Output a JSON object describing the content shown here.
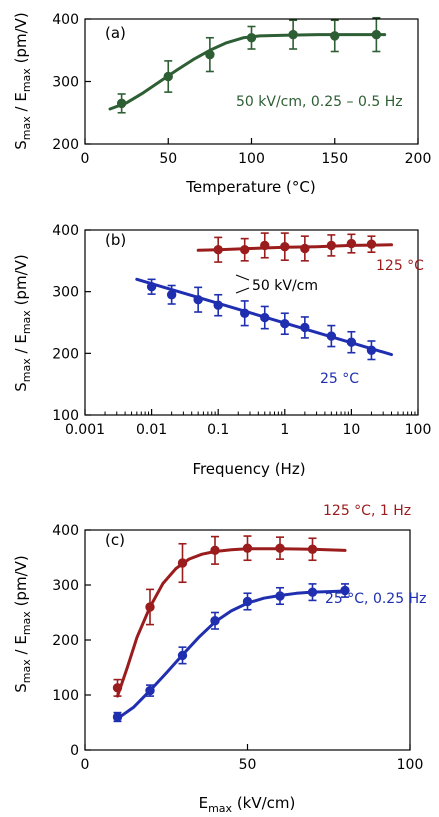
{
  "chart_data": [
    {
      "type": "line",
      "panel": "(a)",
      "xlabel": "Temperature (°C)",
      "ylabel": {
        "main": "S",
        "sub1": "max",
        "mid": " / E",
        "sub2": "max",
        "tail": " (pm/V)"
      },
      "xlim": [
        0,
        200
      ],
      "ylim": [
        200,
        400
      ],
      "xticks": [
        0,
        50,
        100,
        150,
        200
      ],
      "yticks": [
        200,
        300,
        400
      ],
      "xscale": "linear",
      "series": [
        {
          "color": "#2e5e34",
          "x": [
            22,
            50,
            75,
            100,
            125,
            150,
            175
          ],
          "y": [
            265,
            308,
            343,
            370,
            375,
            373,
            375
          ],
          "err": [
            15,
            25,
            27,
            18,
            23,
            25,
            27
          ],
          "fit": {
            "x": [
              15,
              25,
              35,
              45,
              55,
              65,
              75,
              85,
              95,
              105,
              120,
              140,
              160,
              180
            ],
            "y": [
              256,
              266,
              282,
              300,
              318,
              335,
              350,
              362,
              370,
              373,
              374,
              375,
              375,
              375
            ]
          }
        }
      ],
      "annotations": [
        {
          "text": "50 kV/cm, 0.25 – 0.5 Hz",
          "color": "#2e5e34"
        }
      ]
    },
    {
      "type": "line",
      "panel": "(b)",
      "xlabel": "Frequency (Hz)",
      "ylabel": {
        "main": "S",
        "sub1": "max",
        "mid": " / E",
        "sub2": "max",
        "tail": " (pm/V)"
      },
      "xlim": [
        0.001,
        100
      ],
      "ylim": [
        100,
        400
      ],
      "xticks": [
        0.001,
        0.01,
        0.1,
        1,
        10,
        100
      ],
      "xticklabels": [
        "0.001",
        "0.01",
        "0.1",
        "1",
        "10",
        "100"
      ],
      "yticks": [
        100,
        200,
        300,
        400
      ],
      "xscale": "log",
      "series": [
        {
          "name": "125 °C",
          "color": "#9b1c1c",
          "x": [
            0.1,
            0.25,
            0.5,
            1,
            2,
            5,
            10,
            20
          ],
          "y": [
            368,
            368,
            375,
            373,
            370,
            375,
            378,
            377
          ],
          "err": [
            20,
            18,
            20,
            22,
            20,
            17,
            15,
            13
          ],
          "fit": {
            "x": [
              0.05,
              0.1,
              0.3,
              1,
              3,
              10,
              40
            ],
            "y": [
              367,
              368,
              370,
              372,
              373,
              375,
              376
            ]
          }
        },
        {
          "name": "25 °C",
          "color": "#1f2fb0",
          "x": [
            0.01,
            0.02,
            0.05,
            0.1,
            0.25,
            0.5,
            1,
            2,
            5,
            10,
            20
          ],
          "y": [
            308,
            295,
            287,
            278,
            265,
            258,
            248,
            242,
            228,
            218,
            205
          ],
          "err": [
            12,
            15,
            20,
            17,
            20,
            18,
            17,
            17,
            17,
            17,
            15
          ],
          "fit": {
            "x": [
              0.006,
              40
            ],
            "y": [
              320,
              198
            ]
          }
        }
      ],
      "annotations": [
        {
          "text": "125 °C",
          "color": "#9b1c1c"
        },
        {
          "text": "50 kV/cm",
          "color": "#000000"
        },
        {
          "text": "25 °C",
          "color": "#1f2fb0"
        }
      ]
    },
    {
      "type": "line",
      "panel": "(c)",
      "xlabel": {
        "main": "E",
        "sub": "max",
        "tail": " (kV/cm)"
      },
      "ylabel": {
        "main": "S",
        "sub1": "max",
        "mid": " / E",
        "sub2": "max",
        "tail": " (pm/V)"
      },
      "xlim": [
        0,
        100
      ],
      "ylim": [
        0,
        400
      ],
      "xticks": [
        0,
        50,
        100
      ],
      "yticks": [
        0,
        100,
        200,
        300,
        400
      ],
      "xscale": "linear",
      "series": [
        {
          "name": "125 °C, 1 Hz",
          "color": "#9b1c1c",
          "x": [
            10,
            20,
            30,
            40,
            50,
            60,
            70
          ],
          "y": [
            113,
            260,
            340,
            363,
            367,
            367,
            365
          ],
          "err": [
            15,
            32,
            35,
            25,
            22,
            20,
            20
          ],
          "fit": {
            "x": [
              10,
              13,
              16,
              20,
              24,
              28,
              32,
              36,
              40,
              45,
              50,
              60,
              70,
              80
            ],
            "y": [
              98,
              150,
              205,
              260,
              303,
              330,
              347,
              356,
              361,
              364,
              366,
              366,
              365,
              363
            ]
          }
        },
        {
          "name": "25 °C, 0.25 Hz",
          "color": "#1f2fb0",
          "x": [
            10,
            20,
            30,
            40,
            50,
            60,
            70,
            80
          ],
          "y": [
            60,
            108,
            172,
            235,
            270,
            280,
            287,
            290
          ],
          "err": [
            8,
            10,
            15,
            15,
            15,
            15,
            15,
            12
          ],
          "fit": {
            "x": [
              10,
              15,
              20,
              25,
              30,
              35,
              40,
              45,
              50,
              55,
              60,
              65,
              70,
              75,
              80
            ],
            "y": [
              57,
              78,
              108,
              140,
              173,
              205,
              233,
              253,
              267,
              276,
              281,
              285,
              287,
              288,
              289
            ]
          }
        }
      ],
      "annotations": [
        {
          "text": "125 °C, 1 Hz",
          "color": "#9b1c1c"
        },
        {
          "text": "25 °C, 0.25 Hz",
          "color": "#1f2fb0"
        }
      ]
    }
  ]
}
